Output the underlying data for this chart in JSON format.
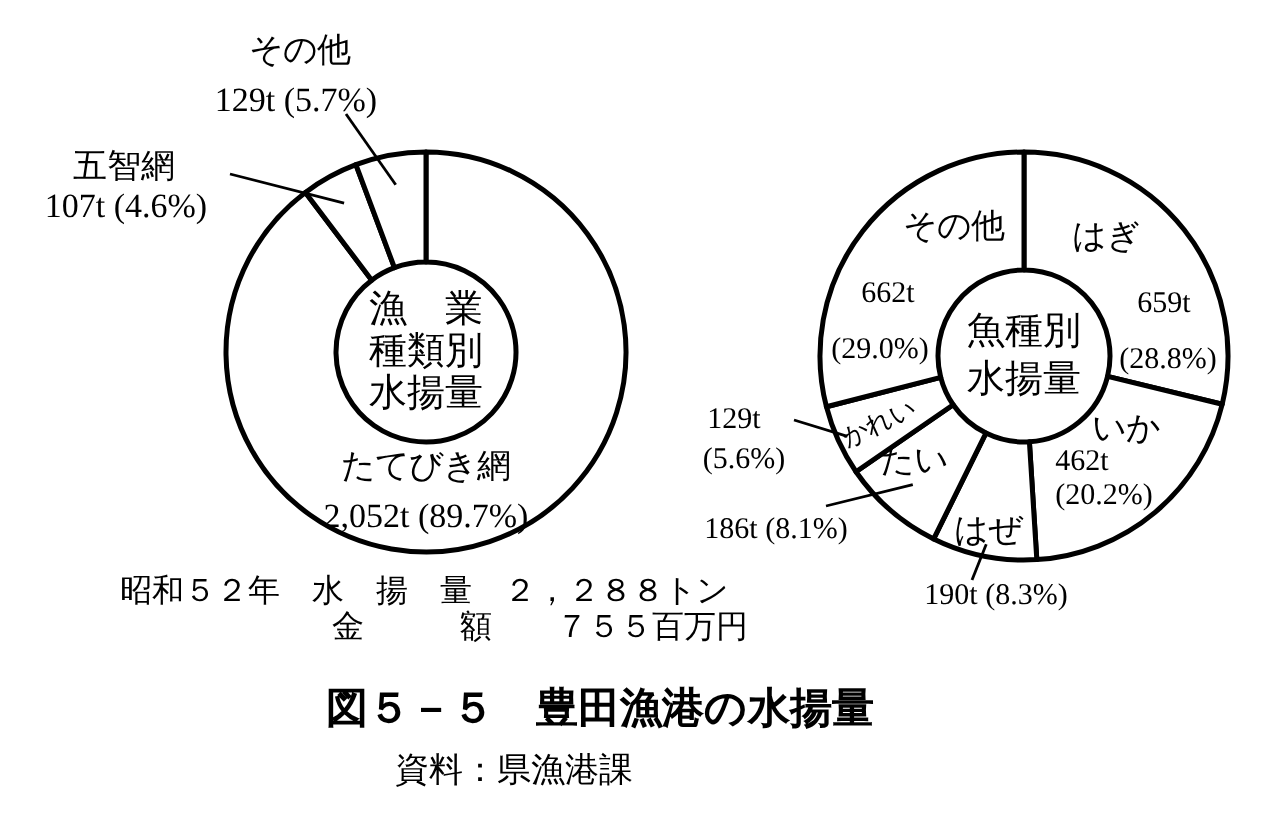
{
  "chart_data": [
    {
      "type": "donut",
      "title": "漁業種類別水揚量",
      "categories": [
        "たてびき網",
        "五智網",
        "その他"
      ],
      "values": [
        89.7,
        4.6,
        5.7
      ],
      "colors": [
        "#ffffff",
        "#ffffff",
        "#ffffff"
      ],
      "value_labels": [
        "2,052t (89.7%)",
        "107t (4.6%)",
        "129t (5.7%)"
      ]
    },
    {
      "type": "donut",
      "title": "魚種別水揚量",
      "categories": [
        "はぎ",
        "いか",
        "はぜ",
        "たい",
        "かれい",
        "その他"
      ],
      "values": [
        28.8,
        20.2,
        8.3,
        8.1,
        5.6,
        29.0
      ],
      "colors": [
        "#ffffff",
        "#ffffff",
        "#ffffff",
        "#ffffff",
        "#ffffff",
        "#ffffff"
      ],
      "value_labels": [
        "659t\n(28.8%)",
        "462t\n(20.2%)",
        "190t (8.3%)",
        "186t (8.1%)",
        "129t\n(5.6%)",
        "662t\n(29.0%)"
      ]
    },
    {
      "type": "other",
      "title": "図５－５　豊田漁港の水揚量",
      "annotations": [
        "昭和５２年　水　揚　量　２，２８８トン",
        "金　　　額　　７５５百万円",
        "資料：県漁港課"
      ]
    }
  ]
}
